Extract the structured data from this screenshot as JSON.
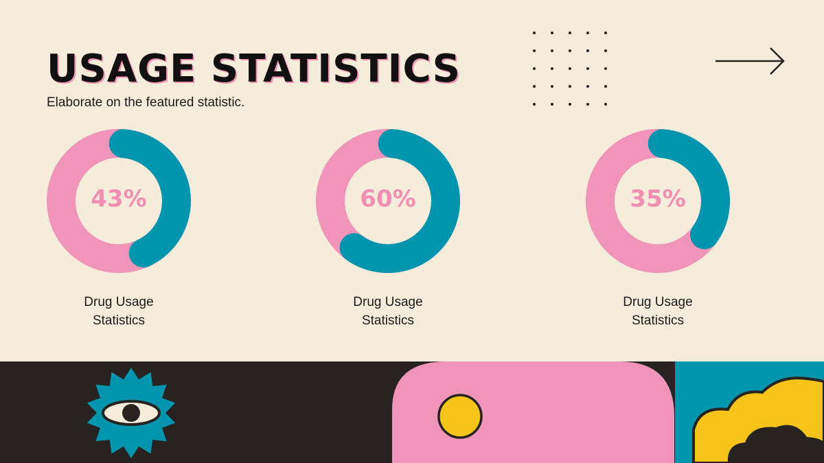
{
  "slide": {
    "title": "USAGE STATISTICS",
    "subtitle": "Elaborate on the featured statistic."
  },
  "chart_data": {
    "type": "donut",
    "items": [
      {
        "value": 43,
        "display": "43%",
        "label": "Drug Usage Statistics"
      },
      {
        "value": 60,
        "display": "60%",
        "label": "Drug Usage Statistics"
      },
      {
        "value": 35,
        "display": "35%",
        "label": "Drug Usage Statistics"
      }
    ],
    "colors": {
      "filled": "#0095ae",
      "remaining": "#f095b9"
    }
  },
  "decor": {
    "icons": [
      "dot-grid-icon",
      "arrow-right-icon",
      "eye-icon",
      "circle-icon",
      "cloud-icon"
    ],
    "colors": {
      "background": "#f5ecdc",
      "dark": "#262320",
      "pink": "#f095b9",
      "teal": "#0095ae",
      "yellow": "#f6c319"
    }
  }
}
